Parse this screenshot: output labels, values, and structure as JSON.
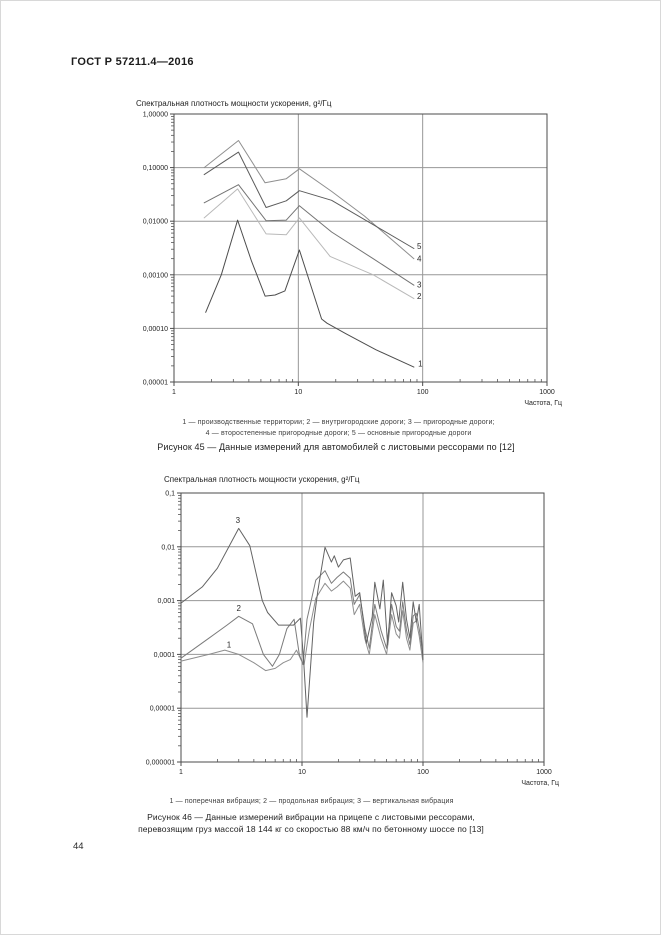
{
  "page": {
    "header_title": "ГОСТ Р 57211.4—2016",
    "page_number": "44"
  },
  "chart_data": [
    {
      "figure": "Рисунок 45",
      "type": "line",
      "title": "Спектральная плотность мощности ускорения, g²/Гц",
      "xlabel": "Частота, Гц",
      "x_scale": "log",
      "y_scale": "log",
      "xlim": [
        1,
        1000
      ],
      "ylim": [
        1e-05,
        1
      ],
      "grid": "major",
      "legend_position": "below",
      "x_tick_labels": [
        "1",
        "10",
        "100",
        "1000"
      ],
      "y_tick_labels": [
        "1,00000",
        "0,10000",
        "0,01000",
        "0,00100",
        "0,00010",
        "0,00001"
      ],
      "series": [
        {
          "name": "1",
          "label": "производственные территории",
          "color": "#4d4d4d",
          "points": [
            [
              1.8,
              0.0002
            ],
            [
              2.4,
              0.001
            ],
            [
              3.25,
              0.0105
            ],
            [
              4.2,
              0.0018
            ],
            [
              5.4,
              0.0004
            ],
            [
              6.5,
              0.00042
            ],
            [
              7.8,
              0.0005
            ],
            [
              10.2,
              0.0029
            ],
            [
              15.4,
              0.00015
            ],
            [
              17,
              0.000125
            ],
            [
              24,
              8e-05
            ],
            [
              42,
              4e-05
            ],
            [
              85,
              1.9e-05
            ]
          ]
        },
        {
          "name": "2",
          "label": "внутригородские дороги",
          "color": "#b9b9b9",
          "points": [
            [
              1.75,
              0.0115
            ],
            [
              3.25,
              0.04
            ],
            [
              5.5,
              0.0058
            ],
            [
              8,
              0.0056
            ],
            [
              10.2,
              0.0115
            ],
            [
              18,
              0.0022
            ],
            [
              40,
              0.001
            ],
            [
              85,
              0.00036
            ]
          ]
        },
        {
          "name": "3",
          "label": "пригородные дороги",
          "color": "#747474",
          "points": [
            [
              1.75,
              0.022
            ],
            [
              3.3,
              0.048
            ],
            [
              5.5,
              0.0102
            ],
            [
              8,
              0.0105
            ],
            [
              10.2,
              0.0195
            ],
            [
              18.5,
              0.0063
            ],
            [
              40,
              0.002
            ],
            [
              85,
              0.00064
            ]
          ]
        },
        {
          "name": "4",
          "label": "второстепенные пригородные дороги",
          "color": "#8f8f8f",
          "points": [
            [
              1.75,
              0.1
            ],
            [
              3.3,
              0.32
            ],
            [
              5.4,
              0.052
            ],
            [
              8,
              0.062
            ],
            [
              10.2,
              0.095
            ],
            [
              18.5,
              0.036
            ],
            [
              34,
              0.0125
            ],
            [
              85,
              0.002
            ]
          ]
        },
        {
          "name": "5",
          "label": "основные пригородные дороги",
          "color": "#5c5c5c",
          "points": [
            [
              1.75,
              0.074
            ],
            [
              3.3,
              0.195
            ],
            [
              5.5,
              0.018
            ],
            [
              8,
              0.024
            ],
            [
              10.2,
              0.037
            ],
            [
              18.5,
              0.0245
            ],
            [
              85,
              0.0031
            ]
          ]
        }
      ],
      "curve_labels": [
        {
          "text": "5",
          "x": 90,
          "y": 0.0034
        },
        {
          "text": "4",
          "x": 90,
          "y": 0.002
        },
        {
          "text": "3",
          "x": 90,
          "y": 0.00066
        },
        {
          "text": "2",
          "x": 90,
          "y": 0.0004
        },
        {
          "text": "1",
          "x": 92,
          "y": 2.2e-05
        }
      ],
      "legend_lines": [
        "1 — производственные территории; 2 — внутригородские дороги; 3 — пригородные дороги;",
        "4 — второстепенные пригородные дороги; 5 — основные пригородные дороги"
      ],
      "caption_lines": [
        "Рисунок 45 — Данные измерений для автомобилей с листовыми рессорами по [12]"
      ]
    },
    {
      "figure": "Рисунок 46",
      "type": "line",
      "title": "Спектральная плотность мощности ускорения, g²/Гц",
      "xlabel": "Частота, Гц",
      "x_scale": "log",
      "y_scale": "log",
      "xlim": [
        1,
        1000
      ],
      "ylim": [
        1e-06,
        0.1
      ],
      "grid": "major",
      "legend_position": "below",
      "x_tick_labels": [
        "1",
        "10",
        "100",
        "1000"
      ],
      "y_tick_labels": [
        "0,1",
        "0,01",
        "0,001",
        "0,0001",
        "0,00001",
        "0,000001"
      ],
      "series": [
        {
          "name": "1",
          "label": "поперечная вибрация",
          "color": "#8e8e8e",
          "points": [
            [
              1,
              7.5e-05
            ],
            [
              1.7,
              0.0001
            ],
            [
              2.3,
              0.00012
            ],
            [
              3,
              0.0001
            ],
            [
              4,
              7e-05
            ],
            [
              5,
              5e-05
            ],
            [
              6,
              5.5e-05
            ],
            [
              7,
              7e-05
            ],
            [
              8,
              8e-05
            ],
            [
              9,
              0.00012
            ],
            [
              9.8,
              8e-05
            ],
            [
              10.4,
              6.5e-05
            ],
            [
              11.5,
              0.00028
            ],
            [
              13,
              0.0011
            ],
            [
              15.5,
              0.0021
            ],
            [
              17.5,
              0.0015
            ],
            [
              19.5,
              0.0018
            ],
            [
              22,
              0.0023
            ],
            [
              25,
              0.0017
            ],
            [
              27,
              0.00055
            ],
            [
              30,
              0.00085
            ],
            [
              33,
              0.0002
            ],
            [
              36,
              0.0001
            ],
            [
              40,
              0.00055
            ],
            [
              45,
              0.0002
            ],
            [
              50,
              0.0001
            ],
            [
              55,
              0.00055
            ],
            [
              60,
              0.00024
            ],
            [
              64,
              0.0002
            ],
            [
              68,
              0.00065
            ],
            [
              73,
              0.0002
            ],
            [
              78,
              0.00012
            ],
            [
              83,
              0.00038
            ],
            [
              88,
              0.00042
            ],
            [
              93,
              0.00022
            ],
            [
              100,
              7e-05
            ]
          ]
        },
        {
          "name": "2",
          "label": "продольная вибрация",
          "color": "#7b7b7b",
          "points": [
            [
              1,
              8.5e-05
            ],
            [
              1.7,
              0.0002
            ],
            [
              2.4,
              0.00035
            ],
            [
              3,
              0.00051
            ],
            [
              3.9,
              0.00037
            ],
            [
              4.8,
              0.0001
            ],
            [
              5.7,
              6e-05
            ],
            [
              6.5,
              0.0001
            ],
            [
              7.5,
              0.0003
            ],
            [
              8.6,
              0.00045
            ],
            [
              9.5,
              0.0001
            ],
            [
              10.2,
              6.5e-05
            ],
            [
              11,
              0.00045
            ],
            [
              13,
              0.0024
            ],
            [
              15.5,
              0.0036
            ],
            [
              17.5,
              0.0021
            ],
            [
              19.5,
              0.0027
            ],
            [
              22,
              0.0034
            ],
            [
              25,
              0.0026
            ],
            [
              27,
              0.00085
            ],
            [
              30,
              0.0013
            ],
            [
              33,
              0.00032
            ],
            [
              36,
              0.00013
            ],
            [
              40,
              0.00085
            ],
            [
              45,
              0.00028
            ],
            [
              50,
              0.00013
            ],
            [
              55,
              0.00085
            ],
            [
              60,
              0.00033
            ],
            [
              64,
              0.00027
            ],
            [
              68,
              0.00095
            ],
            [
              73,
              0.00028
            ],
            [
              78,
              0.00015
            ],
            [
              83,
              0.00052
            ],
            [
              88,
              0.00058
            ],
            [
              93,
              0.0003
            ],
            [
              100,
              9.5e-05
            ]
          ]
        },
        {
          "name": "3",
          "label": "вертикальная вибрация",
          "color": "#636363",
          "points": [
            [
              1,
              0.0009
            ],
            [
              1.5,
              0.0018
            ],
            [
              2,
              0.004
            ],
            [
              3,
              0.022
            ],
            [
              3.7,
              0.0105
            ],
            [
              4.7,
              0.001
            ],
            [
              5.2,
              0.0006
            ],
            [
              6.4,
              0.00035
            ],
            [
              8.5,
              0.00035
            ],
            [
              9.7,
              0.00047
            ],
            [
              10.3,
              8e-05
            ],
            [
              11,
              6.8e-06
            ],
            [
              12.5,
              0.0004
            ],
            [
              13.5,
              0.0015
            ],
            [
              15.5,
              0.0098
            ],
            [
              17.5,
              0.0052
            ],
            [
              18.5,
              0.0068
            ],
            [
              20,
              0.0042
            ],
            [
              22,
              0.0057
            ],
            [
              25,
              0.0062
            ],
            [
              27.5,
              0.0012
            ],
            [
              30,
              0.0014
            ],
            [
              34,
              0.00016
            ],
            [
              38,
              0.0005
            ],
            [
              40,
              0.0022
            ],
            [
              44,
              0.0007
            ],
            [
              47,
              0.0024
            ],
            [
              51,
              0.00015
            ],
            [
              55,
              0.0014
            ],
            [
              60,
              0.0008
            ],
            [
              63,
              0.0004
            ],
            [
              68,
              0.0022
            ],
            [
              73,
              0.00045
            ],
            [
              78,
              0.0002
            ],
            [
              83,
              0.00095
            ],
            [
              88,
              0.0004
            ],
            [
              93,
              0.00085
            ],
            [
              100,
              8e-05
            ]
          ]
        }
      ],
      "curve_labels": [
        {
          "text": "3",
          "x": 2.95,
          "y": 0.0315
        },
        {
          "text": "2",
          "x": 3.0,
          "y": 0.00073
        },
        {
          "text": "1",
          "x": 2.49,
          "y": 0.00015
        }
      ],
      "legend_lines": [
        "1 — поперечная вибрация; 2 — продольная вибрация; 3 — вертикальная вибрация"
      ],
      "caption_lines": [
        "Рисунок 46 — Данные измерений вибрации на прицепе с листовыми рессорами,",
        "перевозящим груз массой 18 144 кг со скоростью 88 км/ч по бетонному шоссе по [13]"
      ]
    }
  ],
  "colors": {
    "grid": "#979797",
    "border": "#4b4b4b",
    "tick": "#555555",
    "text": "#1f1f1f"
  }
}
